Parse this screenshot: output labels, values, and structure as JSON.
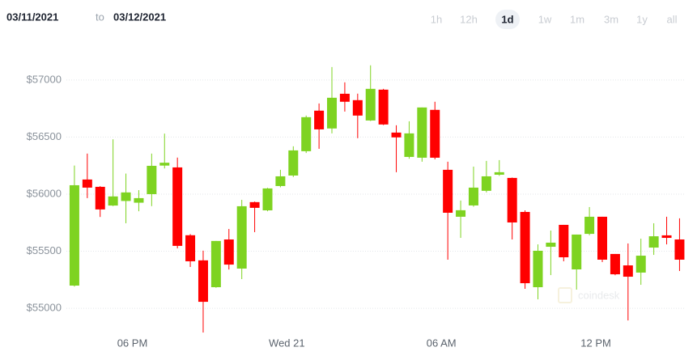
{
  "header": {
    "from": "03/11/2021",
    "joiner": "to",
    "to": "03/12/2021"
  },
  "ranges": [
    "1h",
    "12h",
    "1d",
    "1w",
    "1m",
    "3m",
    "1y",
    "all"
  ],
  "selected_range": 2,
  "watermark": "coindesk",
  "chart_data": {
    "type": "candlestick",
    "up_color": "#7ed321",
    "down_color": "#ff0000",
    "open": [
      55199,
      56128,
      56064,
      55900,
      55940,
      55925,
      56000,
      56250,
      56234,
      55640,
      55420,
      55185,
      55603,
      55348,
      55930,
      55858,
      56071,
      56163,
      56376,
      56731,
      56575,
      56879,
      56823,
      56645,
      56915,
      56539,
      56326,
      56319,
      56738,
      56213,
      55802,
      55901,
      56029,
      56170,
      56142,
      55844,
      55185,
      55539,
      55731,
      55341,
      55652,
      55802,
      55476,
      55376,
      55313,
      55532,
      55639,
      55603
    ],
    "high": [
      56250,
      56355,
      56070,
      56480,
      56180,
      56035,
      56355,
      56530,
      56320,
      55650,
      55505,
      55590,
      55695,
      55950,
      55935,
      56055,
      56213,
      56419,
      56688,
      56794,
      57113,
      56979,
      56880,
      57128,
      56922,
      56603,
      56638,
      56759,
      56809,
      56284,
      55944,
      56241,
      56291,
      56298,
      56145,
      55858,
      55560,
      55681,
      55731,
      55646,
      55887,
      55802,
      55476,
      55568,
      55610,
      55745,
      55802,
      55788
    ],
    "low": [
      55190,
      55965,
      55800,
      55895,
      55745,
      55850,
      55895,
      56225,
      55525,
      55362,
      54788,
      55180,
      55340,
      55256,
      55667,
      55850,
      56060,
      56150,
      56360,
      56397,
      56532,
      56723,
      56490,
      56640,
      56605,
      56192,
      56310,
      56284,
      56305,
      55426,
      55617,
      55890,
      56015,
      56160,
      55603,
      55171,
      55079,
      55291,
      55412,
      55164,
      55640,
      55405,
      55290,
      54894,
      55206,
      55468,
      55560,
      55327
    ],
    "close": [
      56078,
      56057,
      55866,
      55980,
      56015,
      55965,
      56248,
      56275,
      55547,
      55412,
      55057,
      55590,
      55383,
      55894,
      55880,
      56050,
      56156,
      56383,
      56674,
      56567,
      56844,
      56809,
      56688,
      56922,
      56610,
      56497,
      56532,
      56759,
      56319,
      55837,
      55859,
      56057,
      56156,
      56192,
      55752,
      55220,
      55504,
      55575,
      55447,
      55646,
      55802,
      55426,
      55298,
      55277,
      55461,
      55631,
      55617,
      55426
    ],
    "xlim": [
      -0.75,
      47.35
    ],
    "xticks": [
      {
        "value": 4.5,
        "label": "06 PM"
      },
      {
        "value": 16.5,
        "label": "Wed 21"
      },
      {
        "value": 28.5,
        "label": "06 AM"
      },
      {
        "value": 40.5,
        "label": "12 PM"
      }
    ],
    "ylim": [
      54760,
      57275
    ],
    "yticks": [
      {
        "value": 55000,
        "label": "$55000"
      },
      {
        "value": 55500,
        "label": "$55500"
      },
      {
        "value": 56000,
        "label": "$56000"
      },
      {
        "value": 56500,
        "label": "$56500"
      },
      {
        "value": 57000,
        "label": "$57000"
      }
    ],
    "grid": true
  }
}
